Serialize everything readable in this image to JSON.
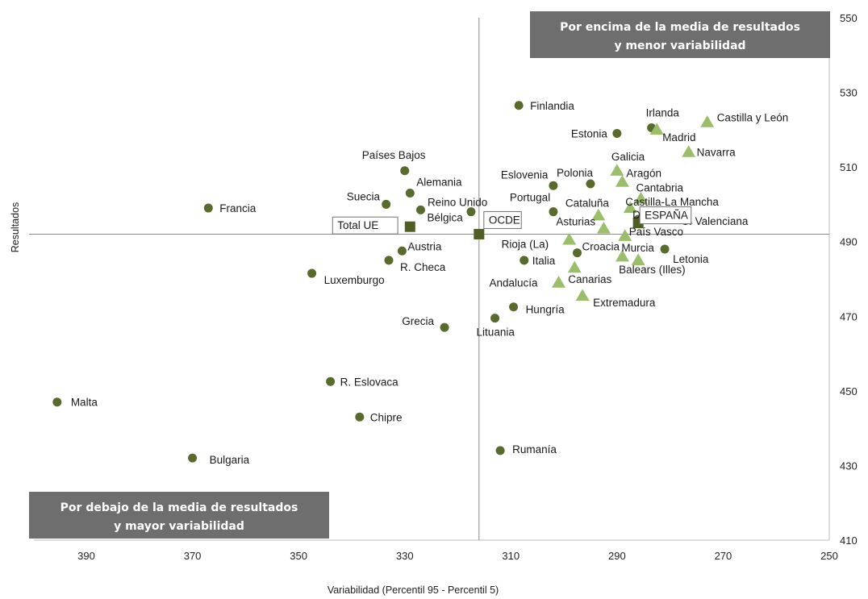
{
  "chart_data": {
    "type": "scatter",
    "title": "",
    "xlabel": "Variabilidad (Percentil 95 - Percentil 5)",
    "ylabel": "Resultados",
    "xlim": [
      400,
      250
    ],
    "x_reversed": true,
    "ylim": [
      410,
      550
    ],
    "x_ticks": [
      390,
      370,
      350,
      330,
      310,
      290,
      270,
      250
    ],
    "y_ticks": [
      410,
      430,
      450,
      470,
      490,
      510,
      530,
      550
    ],
    "y_axis_position": "right",
    "grid": false,
    "reference_lines": {
      "x": 316,
      "y": 492
    },
    "colors": {
      "countries": "#586b2c",
      "regions": "#9bbe6b",
      "aggregates": "#4e5e25",
      "banner": "#6e6e6e"
    },
    "annotations": [
      {
        "text_line1": "Por encima de la media de resultados",
        "text_line2": "y menor variabilidad",
        "position": "top-right"
      },
      {
        "text_line1": "Por debajo de la media de resultados",
        "text_line2": "y mayor variabilidad",
        "position": "bottom-left"
      }
    ],
    "series": [
      {
        "marker": "circle",
        "points": [
          {
            "label": "Finlandia",
            "x": 308.5,
            "y": 526.5
          },
          {
            "label": "Irlanda",
            "x": 283.5,
            "y": 520.5
          },
          {
            "label": "Estonia",
            "x": 290,
            "y": 519
          },
          {
            "label": "Países Bajos",
            "x": 330,
            "y": 509
          },
          {
            "label": "Eslovenia",
            "x": 302,
            "y": 505
          },
          {
            "label": "Polonia",
            "x": 295,
            "y": 505.5
          },
          {
            "label": "Alemania",
            "x": 329,
            "y": 503
          },
          {
            "label": "Suecia",
            "x": 333.5,
            "y": 500
          },
          {
            "label": "Francia",
            "x": 367,
            "y": 499
          },
          {
            "label": "Reino Unido",
            "x": 317.5,
            "y": 498
          },
          {
            "label": "Portugal",
            "x": 302,
            "y": 498
          },
          {
            "label": "Bélgica",
            "x": 327,
            "y": 498.5
          },
          {
            "label": "Dinamarca",
            "x": 286,
            "y": 496
          },
          {
            "label": "Austria",
            "x": 330.5,
            "y": 487.5
          },
          {
            "label": "Letonia",
            "x": 281,
            "y": 488
          },
          {
            "label": "Croacia",
            "x": 297.5,
            "y": 487
          },
          {
            "label": "R. Checa",
            "x": 333,
            "y": 485
          },
          {
            "label": "Italia",
            "x": 307.5,
            "y": 485
          },
          {
            "label": "Luxemburgo",
            "x": 347.5,
            "y": 481.5
          },
          {
            "label": "Hungría",
            "x": 309.5,
            "y": 472.5
          },
          {
            "label": "Lituania",
            "x": 313,
            "y": 469.5
          },
          {
            "label": "Grecia",
            "x": 322.5,
            "y": 467
          },
          {
            "label": "R. Eslovaca",
            "x": 344,
            "y": 452.5
          },
          {
            "label": "Malta",
            "x": 395.5,
            "y": 447
          },
          {
            "label": "Chipre",
            "x": 338.5,
            "y": 443
          },
          {
            "label": "Rumanía",
            "x": 312,
            "y": 434
          },
          {
            "label": "Bulgaria",
            "x": 370,
            "y": 432
          }
        ]
      },
      {
        "marker": "triangle",
        "points": [
          {
            "label": "Castilla y León",
            "x": 273,
            "y": 522
          },
          {
            "label": "Madrid",
            "x": 282.5,
            "y": 520
          },
          {
            "label": "Navarra",
            "x": 276.5,
            "y": 514
          },
          {
            "label": "Galicia",
            "x": 290,
            "y": 509
          },
          {
            "label": "Aragón",
            "x": 289,
            "y": 506
          },
          {
            "label": "Cantabria",
            "x": 285.5,
            "y": 501.5
          },
          {
            "label": "Castilla-La Mancha",
            "x": 287.5,
            "y": 499
          },
          {
            "label": "Cataluña",
            "x": 293.5,
            "y": 497
          },
          {
            "label": "C. Valenciana",
            "x": 277,
            "y": 496
          },
          {
            "label": "Asturias",
            "x": 292.5,
            "y": 493.5
          },
          {
            "label": "País Vasco",
            "x": 288.5,
            "y": 491.5
          },
          {
            "label": "Rioja (La)",
            "x": 299,
            "y": 490.5
          },
          {
            "label": "Murcia",
            "x": 289,
            "y": 486
          },
          {
            "label": "Balears (Illes)",
            "x": 286,
            "y": 485
          },
          {
            "label": "Canarias",
            "x": 298,
            "y": 483
          },
          {
            "label": "Andalucía",
            "x": 301,
            "y": 479
          },
          {
            "label": "Extremadura",
            "x": 296.5,
            "y": 475.5
          }
        ]
      },
      {
        "marker": "square",
        "points": [
          {
            "label": "Total UE",
            "x": 329,
            "y": 494
          },
          {
            "label": "OCDE",
            "x": 316,
            "y": 492
          },
          {
            "label": "ESPAÑA",
            "x": 286,
            "y": 495
          }
        ]
      }
    ]
  }
}
